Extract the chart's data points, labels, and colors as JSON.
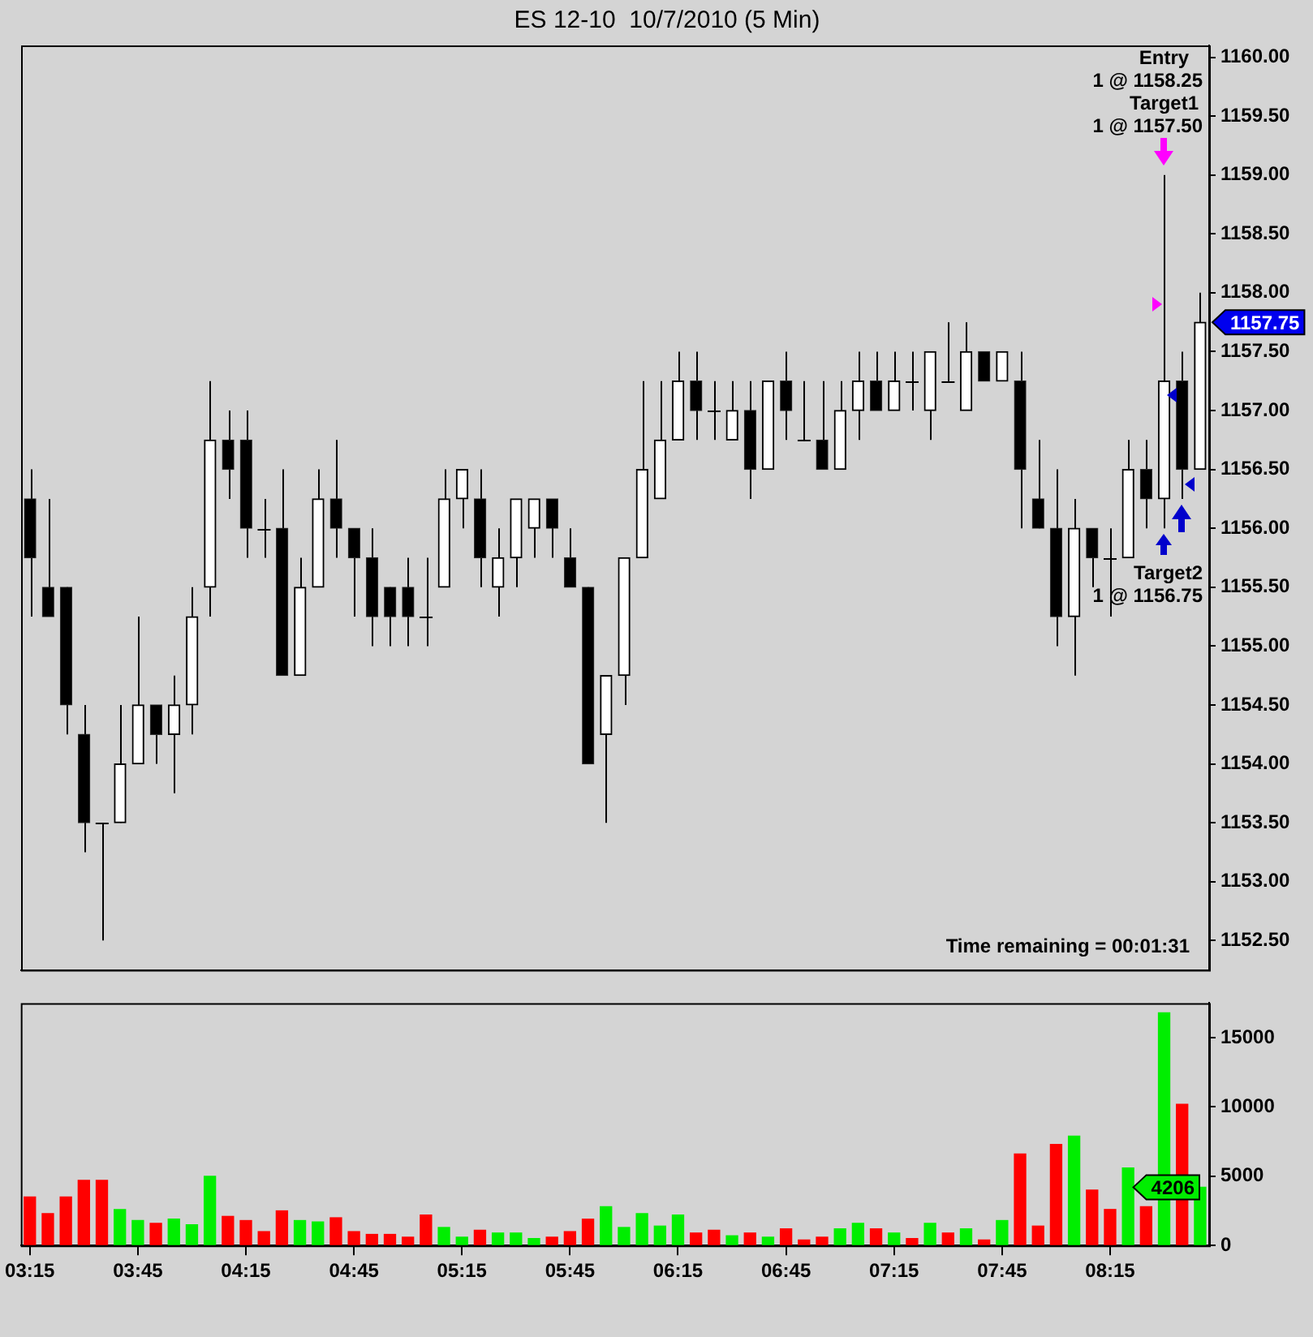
{
  "chart_data": [
    {
      "type": "candlestick",
      "title": "ES 12-10  10/7/2010 (5 Min)",
      "tick_labels": "y",
      "categories": [
        null,
        null,
        null,
        null,
        null,
        null,
        null,
        null,
        null,
        null,
        null,
        null,
        null,
        null,
        null,
        null,
        null,
        null,
        null,
        null,
        null,
        null,
        null,
        null,
        null,
        null,
        null,
        null,
        null,
        null,
        null,
        null,
        null,
        null,
        null,
        null,
        null,
        null,
        null,
        null,
        null,
        null,
        null,
        null,
        null,
        null,
        null,
        null,
        null,
        null,
        null,
        null,
        null,
        null,
        null,
        null,
        null,
        null,
        null,
        null,
        null,
        null,
        null,
        null,
        null,
        null
      ],
      "ohlc": [
        [
          1156.25,
          1156.5,
          1155.25,
          1155.75
        ],
        [
          1155.5,
          1156.25,
          1155.25,
          1155.25
        ],
        [
          1155.5,
          1155.5,
          1154.25,
          1154.5
        ],
        [
          1154.25,
          1154.5,
          1153.25,
          1153.5
        ],
        [
          1153.5,
          1153.5,
          1152.5,
          1153.5
        ],
        [
          1153.5,
          1154.5,
          1153.5,
          1154
        ],
        [
          1154,
          1155.25,
          1154,
          1154.5
        ],
        [
          1154.5,
          1154.5,
          1154,
          1154.25
        ],
        [
          1154.25,
          1154.75,
          1153.75,
          1154.5
        ],
        [
          1154.5,
          1155.5,
          1154.25,
          1155.25
        ],
        [
          1155.5,
          1157.25,
          1155.25,
          1156.75
        ],
        [
          1156.75,
          1157,
          1156.25,
          1156.5
        ],
        [
          1156.75,
          1157,
          1155.75,
          1156
        ],
        [
          1156,
          1156.25,
          1155.75,
          1156
        ],
        [
          1156,
          1156.5,
          1154.75,
          1154.75
        ],
        [
          1154.75,
          1155.75,
          1154.75,
          1155.5
        ],
        [
          1155.5,
          1156.5,
          1155.5,
          1156.25
        ],
        [
          1156.25,
          1156.75,
          1155.75,
          1156
        ],
        [
          1156,
          1156,
          1155.25,
          1155.75
        ],
        [
          1155.75,
          1156,
          1155,
          1155.25
        ],
        [
          1155.5,
          1155.5,
          1155,
          1155.25
        ],
        [
          1155.5,
          1155.75,
          1155,
          1155.25
        ],
        [
          1155.25,
          1155.75,
          1155,
          1155.25
        ],
        [
          1155.5,
          1156.5,
          1155.5,
          1156.25
        ],
        [
          1156.25,
          1156.5,
          1156,
          1156.5
        ],
        [
          1156.25,
          1156.5,
          1155.5,
          1155.75
        ],
        [
          1155.5,
          1156,
          1155.25,
          1155.75
        ],
        [
          1155.75,
          1156.25,
          1155.5,
          1156.25
        ],
        [
          1156,
          1156.25,
          1155.75,
          1156.25
        ],
        [
          1156.25,
          1156.25,
          1155.75,
          1156
        ],
        [
          1155.75,
          1156,
          1155.5,
          1155.5
        ],
        [
          1155.5,
          1155.5,
          1154,
          1154
        ],
        [
          1154.25,
          1154.75,
          1153.5,
          1154.75
        ],
        [
          1154.75,
          1155.75,
          1154.5,
          1155.75
        ],
        [
          1155.75,
          1157.25,
          1155.75,
          1156.5
        ],
        [
          1156.25,
          1157.25,
          1156.25,
          1156.75
        ],
        [
          1156.75,
          1157.5,
          1156.75,
          1157.25
        ],
        [
          1157.25,
          1157.5,
          1156.75,
          1157
        ],
        [
          1157,
          1157.25,
          1156.75,
          1157
        ],
        [
          1156.75,
          1157.25,
          1156.75,
          1157
        ],
        [
          1157,
          1157.25,
          1156.25,
          1156.5
        ],
        [
          1156.5,
          1157.25,
          1156.5,
          1157.25
        ],
        [
          1157.25,
          1157.5,
          1156.75,
          1157
        ],
        [
          1156.75,
          1157.25,
          1156.75,
          1156.75
        ],
        [
          1156.75,
          1157.25,
          1156.5,
          1156.5
        ],
        [
          1156.5,
          1157.25,
          1156.5,
          1157
        ],
        [
          1157,
          1157.5,
          1156.75,
          1157.25
        ],
        [
          1157.25,
          1157.5,
          1157,
          1157
        ],
        [
          1157,
          1157.5,
          1157,
          1157.25
        ],
        [
          1157.25,
          1157.5,
          1157,
          1157.25
        ],
        [
          1157,
          1157.5,
          1156.75,
          1157.5
        ],
        [
          1157.25,
          1157.75,
          1157.25,
          1157.25
        ],
        [
          1157,
          1157.75,
          1157,
          1157.5
        ],
        [
          1157.5,
          1157.5,
          1157.25,
          1157.25
        ],
        [
          1157.25,
          1157.5,
          1157.25,
          1157.5
        ],
        [
          1157.25,
          1157.5,
          1156,
          1156.5
        ],
        [
          1156.25,
          1156.75,
          1156,
          1156
        ],
        [
          1156,
          1156.5,
          1155,
          1155.25
        ],
        [
          1155.25,
          1156.25,
          1154.75,
          1156
        ],
        [
          1156,
          1156,
          1155.5,
          1155.75
        ],
        [
          1155.75,
          1156,
          1155.25,
          1155.75
        ],
        [
          1155.75,
          1156.75,
          1155.75,
          1156.5
        ],
        [
          1156.5,
          1156.75,
          1156,
          1156.25
        ],
        [
          1156.25,
          1159,
          1156,
          1157.25
        ],
        [
          1157.25,
          1157.5,
          1156.25,
          1156.5
        ],
        [
          1156.5,
          1158,
          1156.5,
          1157.75
        ]
      ],
      "ylim": [
        1152.25,
        1160.1
      ],
      "yticks": [
        {
          "value": 1152.5,
          "label": "1152.50"
        },
        {
          "value": 1153,
          "label": "1153.00"
        },
        {
          "value": 1153.5,
          "label": "1153.50"
        },
        {
          "value": 1154,
          "label": "1154.00"
        },
        {
          "value": 1154.5,
          "label": "1154.50"
        },
        {
          "value": 1155,
          "label": "1155.00"
        },
        {
          "value": 1155.5,
          "label": "1155.50"
        },
        {
          "value": 1156,
          "label": "1156.00"
        },
        {
          "value": 1156.5,
          "label": "1156.50"
        },
        {
          "value": 1157,
          "label": "1157.00"
        },
        {
          "value": 1157.5,
          "label": "1157.50"
        },
        {
          "value": 1158,
          "label": "1158.00"
        },
        {
          "value": 1158.5,
          "label": "1158.50"
        },
        {
          "value": 1159,
          "label": "1159.00"
        },
        {
          "value": 1159.5,
          "label": "1159.50"
        },
        {
          "value": 1160,
          "label": "1160.00"
        }
      ],
      "annotations": [
        "Entry",
        "1 @ 1158.25",
        "Target1",
        "1 @ 1157.50",
        "Target2",
        "1 @ 1156.75",
        "Time remaining = 00:01:31",
        "1157.75"
      ]
    },
    {
      "type": "bar",
      "categories": [
        "03:15",
        null,
        null,
        null,
        null,
        null,
        "03:45",
        null,
        null,
        null,
        null,
        null,
        "04:15",
        null,
        null,
        null,
        null,
        null,
        "04:45",
        null,
        null,
        null,
        null,
        null,
        "05:15",
        null,
        null,
        null,
        null,
        null,
        "05:45",
        null,
        null,
        null,
        null,
        null,
        "06:15",
        null,
        null,
        null,
        null,
        null,
        "06:45",
        null,
        null,
        null,
        null,
        null,
        "07:15",
        null,
        null,
        null,
        null,
        null,
        "07:45",
        null,
        null,
        null,
        null,
        null,
        "08:15",
        null,
        null,
        null,
        null,
        null
      ],
      "values": [
        3500,
        2300,
        3500,
        4700,
        4700,
        2600,
        1800,
        1600,
        1900,
        1500,
        5000,
        2100,
        1800,
        1000,
        2500,
        1800,
        1700,
        2000,
        1000,
        800,
        800,
        600,
        2200,
        1300,
        600,
        1100,
        900,
        900,
        500,
        600,
        1000,
        1900,
        2800,
        1300,
        2300,
        1400,
        2200,
        900,
        1100,
        700,
        900,
        600,
        1200,
        400,
        600,
        1200,
        1600,
        1200,
        900,
        500,
        1600,
        900,
        1200,
        400,
        1800,
        6600,
        1400,
        7300,
        7900,
        4000,
        2600,
        5600,
        2800,
        16800,
        10200,
        4206
      ],
      "colors": [
        "#ff0000",
        "#ff0000",
        "#ff0000",
        "#ff0000",
        "#ff0000",
        "#00ee00",
        "#00ee00",
        "#ff0000",
        "#00ee00",
        "#00ee00",
        "#00ee00",
        "#ff0000",
        "#ff0000",
        "#ff0000",
        "#ff0000",
        "#00ee00",
        "#00ee00",
        "#ff0000",
        "#ff0000",
        "#ff0000",
        "#ff0000",
        "#ff0000",
        "#ff0000",
        "#00ee00",
        "#00ee00",
        "#ff0000",
        "#00ee00",
        "#00ee00",
        "#00ee00",
        "#ff0000",
        "#ff0000",
        "#ff0000",
        "#00ee00",
        "#00ee00",
        "#00ee00",
        "#00ee00",
        "#00ee00",
        "#ff0000",
        "#ff0000",
        "#00ee00",
        "#ff0000",
        "#00ee00",
        "#ff0000",
        "#ff0000",
        "#ff0000",
        "#00ee00",
        "#00ee00",
        "#ff0000",
        "#00ee00",
        "#ff0000",
        "#00ee00",
        "#ff0000",
        "#00ee00",
        "#ff0000",
        "#00ee00",
        "#ff0000",
        "#ff0000",
        "#ff0000",
        "#00ee00",
        "#ff0000",
        "#ff0000",
        "#00ee00",
        "#ff0000",
        "#00ee00",
        "#ff0000",
        "#00ee00"
      ],
      "ylim": [
        0,
        17500
      ],
      "yticks": [
        0,
        5000,
        10000,
        15000
      ],
      "annotations": [
        "4206"
      ]
    }
  ]
}
